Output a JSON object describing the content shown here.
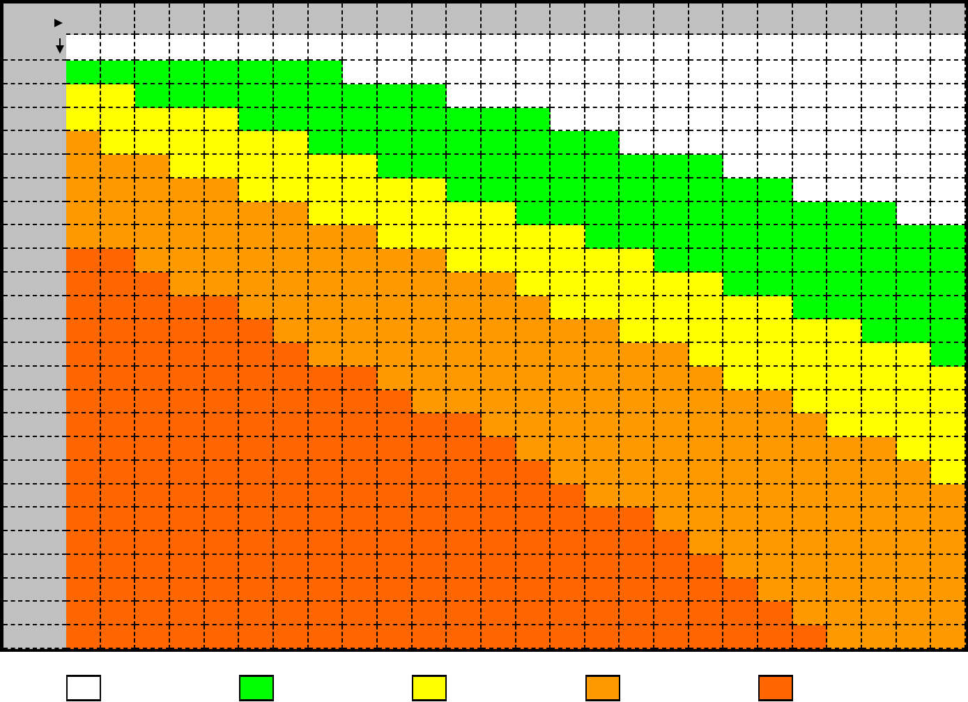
{
  "chart_data": {
    "type": "heatmap",
    "title": "",
    "xlabel": "",
    "ylabel": "",
    "legend": {
      "placement": "bottom",
      "levels": [
        {
          "level": 0,
          "color": "#ffffff"
        },
        {
          "level": 1,
          "color": "#00ff00"
        },
        {
          "level": 2,
          "color": "#ffff00"
        },
        {
          "level": 3,
          "color": "#ff9900"
        },
        {
          "level": 4,
          "color": "#ff6600"
        }
      ]
    },
    "header_color": "#c0c0c0",
    "grid": "dashed",
    "columns": 26,
    "rows": [
      "00000000000000000000000000",
      "11111111000000000000000000",
      "22111111111000000000000000",
      "22222111111111000000000000",
      "32222221111111110000000000",
      "33322222211111111110000000",
      "33333222222111111111100000",
      "33333332222221111111111100",
      "33333333322222211111111111",
      "44333333333222222111111111",
      "44433333333332222221111111",
      "44444333333333222222211111",
      "44444433333333332222222111",
      "44444443333333333322222221",
      "44444444433333333332222222",
      "44444444443333333333322222",
      "44444444444433333333332222",
      "44444444444443333333333322",
      "44444444444444333333333332",
      "44444444444444433333333333",
      "44444444444444444333333333",
      "44444444444444444433333333",
      "44444444444444444443333333",
      "44444444444444444444333333",
      "44444444444444444444433333",
      "44444444444444444444443333"
    ]
  }
}
